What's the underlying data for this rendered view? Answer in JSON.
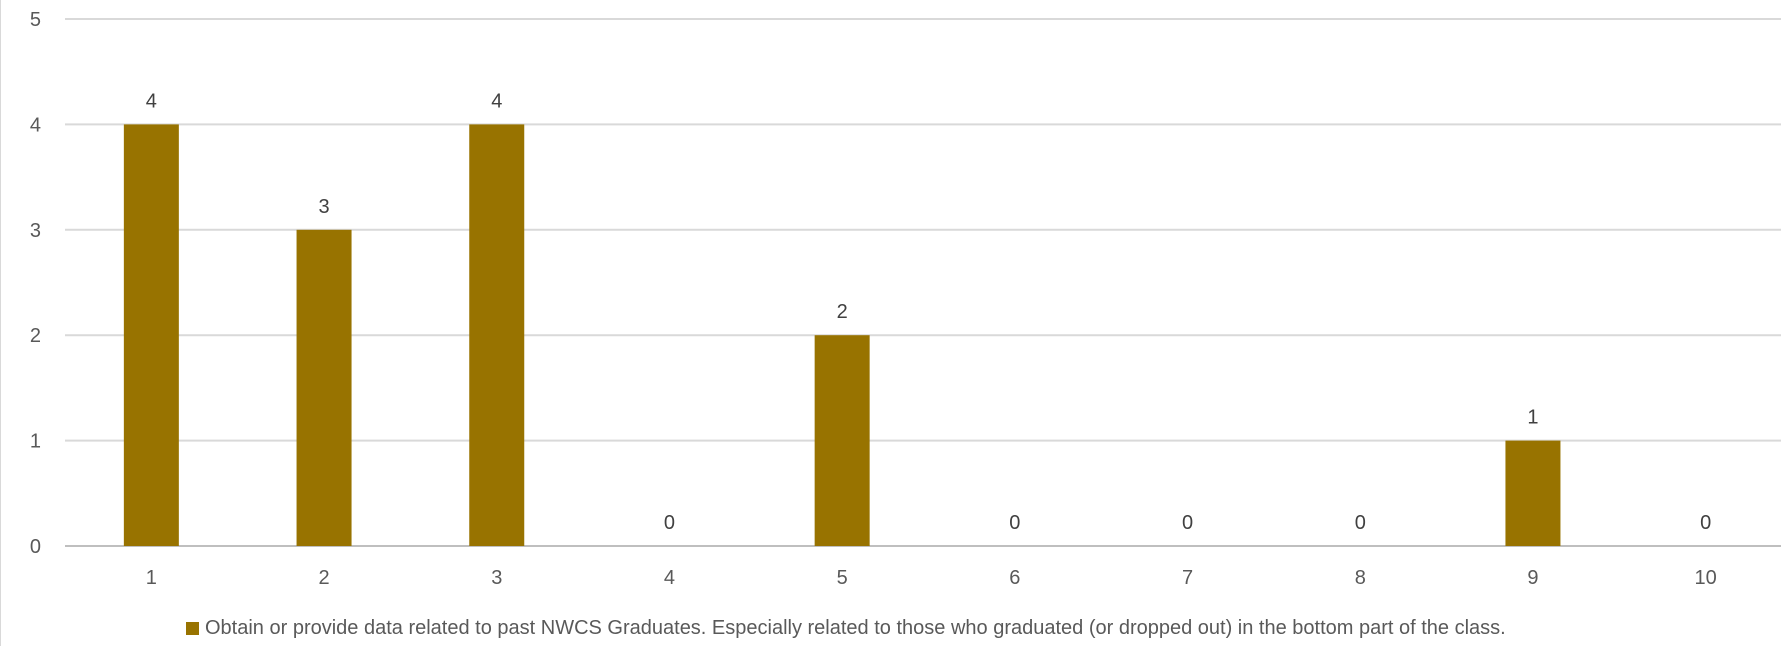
{
  "chart_data": {
    "type": "bar",
    "categories": [
      "1",
      "2",
      "3",
      "4",
      "5",
      "6",
      "7",
      "8",
      "9",
      "10"
    ],
    "series": [
      {
        "name": "Obtain or provide data related to past NWCS Graduates. Especially related to those who graduated (or dropped out) in the bottom part of the class.",
        "values": [
          4,
          3,
          4,
          0,
          2,
          0,
          0,
          0,
          1,
          0
        ],
        "color": "#987300"
      }
    ],
    "ylim": [
      0,
      5
    ],
    "yticks": [
      "0",
      "1",
      "2",
      "3",
      "4",
      "5"
    ],
    "grid": true,
    "legend_position": "bottom",
    "data_labels": true
  }
}
